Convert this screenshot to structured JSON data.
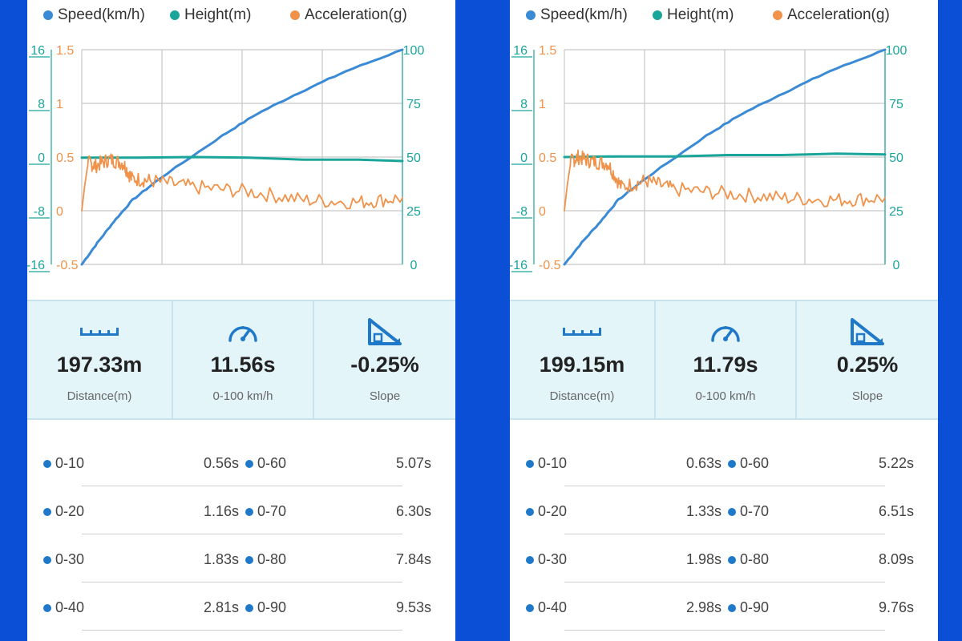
{
  "legend": [
    {
      "label": "Speed(km/h)",
      "color": "#3a8ad6"
    },
    {
      "label": "Height(m)",
      "color": "#1aa59b"
    },
    {
      "label": "Acceleration(g)",
      "color": "#f0924a"
    }
  ],
  "axes": {
    "height_ticks": [
      "16",
      "8",
      "0",
      "-8",
      "-16"
    ],
    "accel_ticks": [
      "1.5",
      "1",
      "0.5",
      "0",
      "-0.5"
    ],
    "speed_ticks": [
      "100",
      "75",
      "50",
      "25",
      "0"
    ]
  },
  "colors": {
    "speed": "#3a8ad6",
    "height": "#1aa59b",
    "accel": "#f0924a",
    "accent": "#1f78c8",
    "background": "#0a4fd6"
  },
  "panels": [
    {
      "chart_data": {
        "type": "line",
        "x_range": [
          0,
          11.56
        ],
        "series": [
          {
            "name": "Speed(km/h)",
            "axis": "speed",
            "ylim": [
              0,
              100
            ],
            "x": [
              0,
              0.56,
              1.16,
              1.83,
              2.81,
              5.07,
              6.3,
              7.84,
              9.53,
              11.56
            ],
            "y": [
              0,
              10,
              20,
              30,
              40,
              60,
              70,
              80,
              90,
              100
            ]
          },
          {
            "name": "Height(m)",
            "axis": "height",
            "ylim": [
              -16,
              16
            ],
            "x": [
              0,
              2,
              4,
              6,
              8,
              10,
              11.56
            ],
            "y": [
              -0.1,
              -0.1,
              0,
              -0.1,
              -0.4,
              -0.4,
              -0.6
            ]
          },
          {
            "name": "Acceleration(g)",
            "axis": "accel",
            "ylim": [
              -0.5,
              1.5
            ],
            "x": [
              0,
              0.2,
              0.5,
              1.0,
              1.5,
              1.8,
              2.5,
              4,
              6,
              8,
              10,
              11.56
            ],
            "y": [
              0,
              0.45,
              0.42,
              0.48,
              0.44,
              0.3,
              0.28,
              0.22,
              0.18,
              0.1,
              0.08,
              0.12
            ]
          }
        ]
      },
      "stats": {
        "distance": "197.33m",
        "distance_label": "Distance(m)",
        "accel_time": "11.56s",
        "accel_label": "0-100 km/h",
        "slope": "-0.25%",
        "slope_label": "Slope"
      },
      "splits": [
        {
          "left_label": "0-10",
          "left_time": "0.56s",
          "right_label": "0-60",
          "right_time": "5.07s"
        },
        {
          "left_label": "0-20",
          "left_time": "1.16s",
          "right_label": "0-70",
          "right_time": "6.30s"
        },
        {
          "left_label": "0-30",
          "left_time": "1.83s",
          "right_label": "0-80",
          "right_time": "7.84s"
        },
        {
          "left_label": "0-40",
          "left_time": "2.81s",
          "right_label": "0-90",
          "right_time": "9.53s"
        }
      ]
    },
    {
      "chart_data": {
        "type": "line",
        "x_range": [
          0,
          11.79
        ],
        "series": [
          {
            "name": "Speed(km/h)",
            "axis": "speed",
            "ylim": [
              0,
              100
            ],
            "x": [
              0,
              0.63,
              1.33,
              1.98,
              2.98,
              5.22,
              6.51,
              8.09,
              9.76,
              11.79
            ],
            "y": [
              0,
              10,
              20,
              30,
              40,
              60,
              70,
              80,
              90,
              100
            ]
          },
          {
            "name": "Height(m)",
            "axis": "height",
            "ylim": [
              -16,
              16
            ],
            "x": [
              0,
              2,
              4,
              6,
              8,
              10,
              11.79
            ],
            "y": [
              0,
              0.1,
              0.1,
              0.3,
              0.3,
              0.5,
              0.4
            ]
          },
          {
            "name": "Acceleration(g)",
            "axis": "accel",
            "ylim": [
              -0.5,
              1.5
            ],
            "x": [
              0,
              0.2,
              0.5,
              1.0,
              1.6,
              2.1,
              3,
              4,
              6,
              8,
              10,
              11.79
            ],
            "y": [
              0,
              0.45,
              0.5,
              0.46,
              0.44,
              0.22,
              0.28,
              0.2,
              0.16,
              0.12,
              0.1,
              0.12
            ]
          }
        ]
      },
      "stats": {
        "distance": "199.15m",
        "distance_label": "Distance(m)",
        "accel_time": "11.79s",
        "accel_label": "0-100 km/h",
        "slope": "0.25%",
        "slope_label": "Slope"
      },
      "splits": [
        {
          "left_label": "0-10",
          "left_time": "0.63s",
          "right_label": "0-60",
          "right_time": "5.22s"
        },
        {
          "left_label": "0-20",
          "left_time": "1.33s",
          "right_label": "0-70",
          "right_time": "6.51s"
        },
        {
          "left_label": "0-30",
          "left_time": "1.98s",
          "right_label": "0-80",
          "right_time": "8.09s"
        },
        {
          "left_label": "0-40",
          "left_time": "2.98s",
          "right_label": "0-90",
          "right_time": "9.76s"
        }
      ]
    }
  ]
}
